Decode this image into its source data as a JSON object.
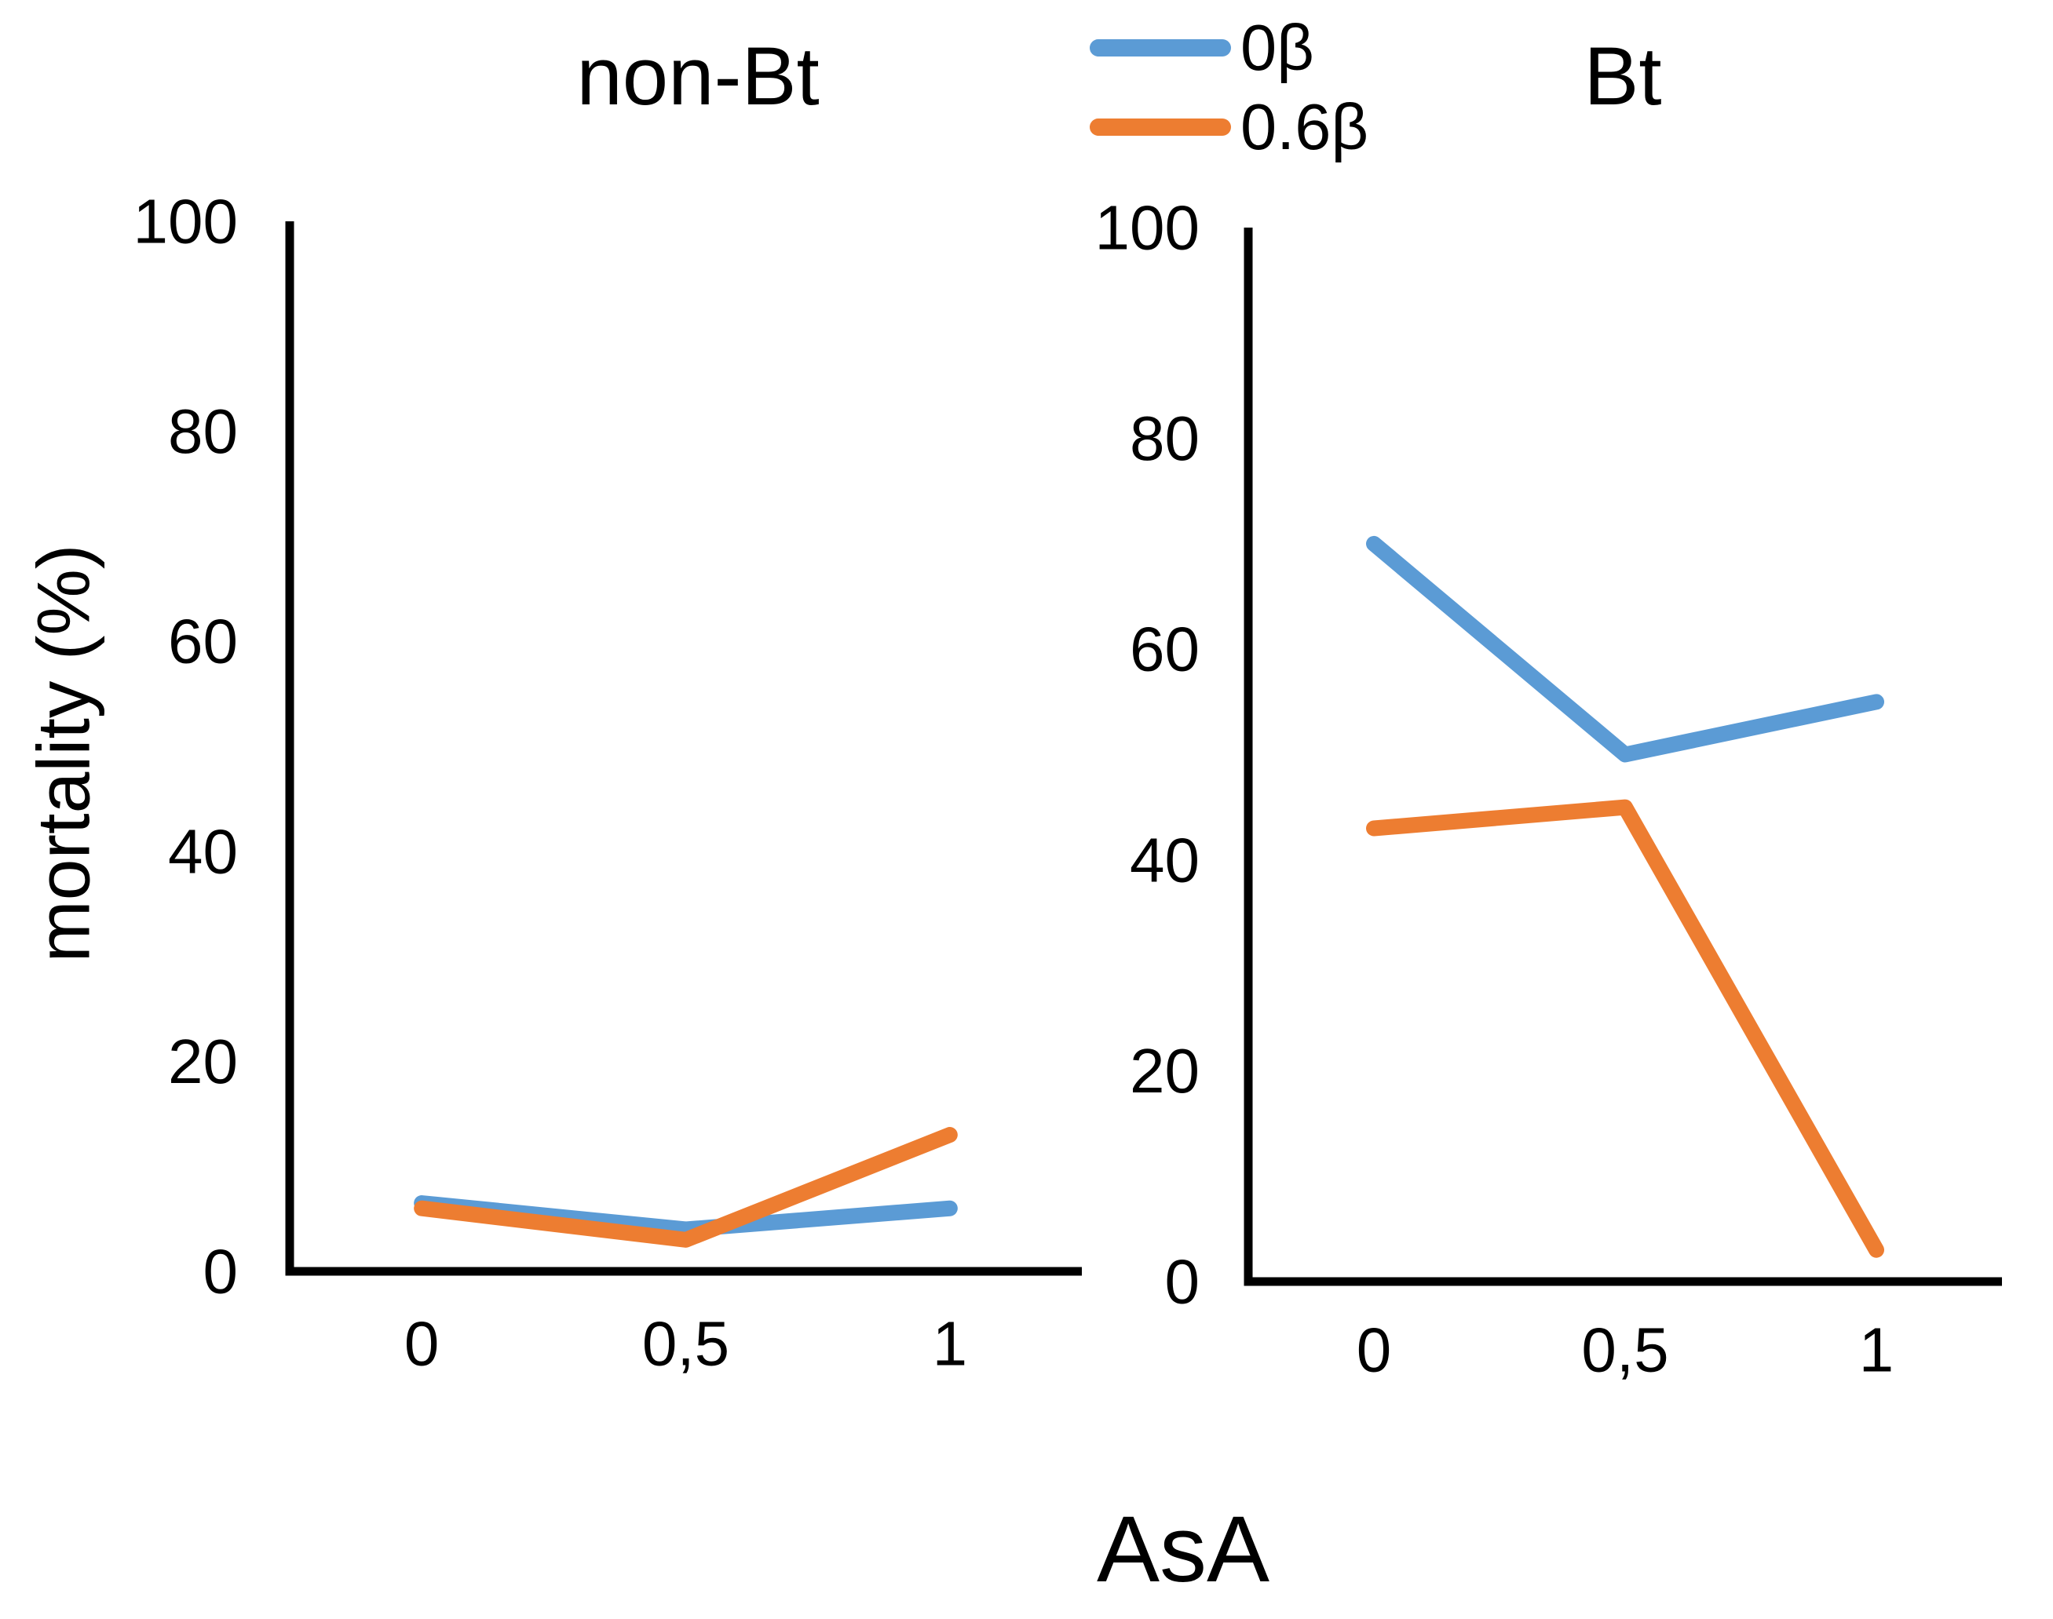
{
  "colors": {
    "axis": "#000000",
    "text": "#000000",
    "background": "#ffffff",
    "series_blue": "#5B9BD5",
    "series_orange": "#ED7D31"
  },
  "legend": {
    "items": [
      {
        "label": "0β",
        "color": "#5B9BD5"
      },
      {
        "label": "0.6β",
        "color": "#ED7D31"
      }
    ]
  },
  "chart_data": [
    {
      "type": "line",
      "title": "non-Bt",
      "xlabel": "AsA",
      "ylabel": "mortality (%)",
      "categories": [
        "0",
        "0,5",
        "1"
      ],
      "yticks": [
        0,
        20,
        40,
        60,
        80,
        100
      ],
      "ylim": [
        0,
        100
      ],
      "grid": false,
      "legend_position": "top-center",
      "series": [
        {
          "name": "0β",
          "color": "#5B9BD5",
          "values": [
            6.5,
            4,
            6
          ]
        },
        {
          "name": "0.6β",
          "color": "#ED7D31",
          "values": [
            6,
            3,
            13
          ]
        }
      ]
    },
    {
      "type": "line",
      "title": "Bt",
      "xlabel": "AsA",
      "ylabel": "mortality (%)",
      "categories": [
        "0",
        "0,5",
        "1"
      ],
      "yticks": [
        0,
        20,
        40,
        60,
        80,
        100
      ],
      "ylim": [
        0,
        100
      ],
      "grid": false,
      "legend_position": "top-center",
      "series": [
        {
          "name": "0β",
          "color": "#5B9BD5",
          "values": [
            70,
            50,
            55
          ]
        },
        {
          "name": "0.6β",
          "color": "#ED7D31",
          "values": [
            43,
            45,
            3
          ]
        }
      ]
    }
  ]
}
